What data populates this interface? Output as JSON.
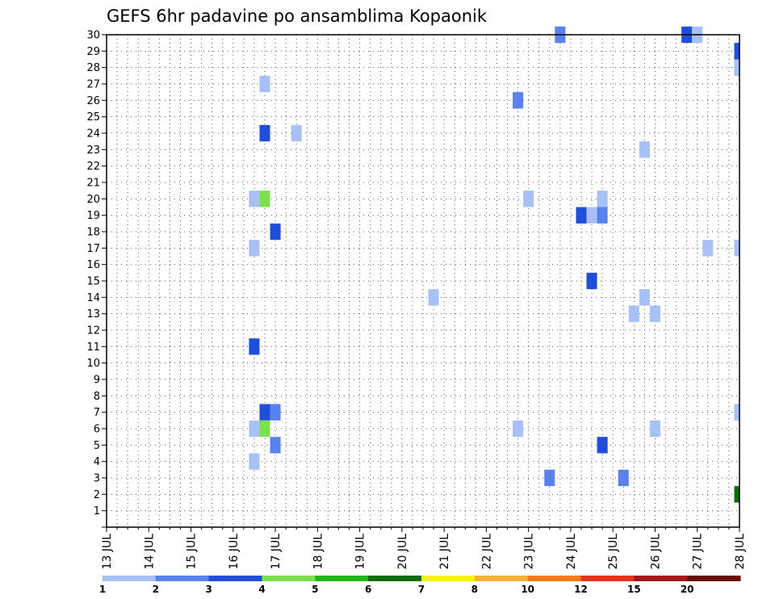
{
  "chart_data": {
    "type": "heatmap",
    "title": "GEFS 6hr padavine po ansamblima Kopaonik",
    "xlabel": "",
    "ylabel": "",
    "x_ticks": [
      "13 JUL",
      "14 JUL",
      "15 JUL",
      "16 JUL",
      "17 JUL",
      "18 JUL",
      "19 JUL",
      "20 JUL",
      "21 JUL",
      "22 JUL",
      "23 JUL",
      "24 JUL",
      "25 JUL",
      "26 JUL",
      "27 JUL",
      "28 JUL"
    ],
    "y_ticks": [
      "1",
      "2",
      "3",
      "4",
      "5",
      "6",
      "7",
      "8",
      "9",
      "10",
      "11",
      "12",
      "13",
      "14",
      "15",
      "16",
      "17",
      "18",
      "19",
      "20",
      "21",
      "22",
      "23",
      "24",
      "25",
      "26",
      "27",
      "28",
      "29",
      "30"
    ],
    "xlim_days": [
      13,
      28
    ],
    "ylim": [
      0,
      30
    ],
    "grid": true,
    "colorbar": {
      "levels": [
        "1",
        "2",
        "3",
        "4",
        "5",
        "6",
        "7",
        "8",
        "10",
        "12",
        "15",
        "20"
      ],
      "colors": [
        "#a8c0f5",
        "#5a82ee",
        "#1f4fd8",
        "#7ae04f",
        "#20b61a",
        "#0d6d0d",
        "#f5f01e",
        "#f7b03c",
        "#f77a19",
        "#e2331b",
        "#a91515",
        "#670b0b"
      ]
    },
    "points": [
      {
        "day": 23.75,
        "member": 30,
        "bin": 1
      },
      {
        "day": 26.75,
        "member": 30,
        "bin": 2
      },
      {
        "day": 27.0,
        "member": 30,
        "bin": 0
      },
      {
        "day": 28.0,
        "member": 29,
        "bin": 2
      },
      {
        "day": 28.0,
        "member": 28,
        "bin": 0
      },
      {
        "day": 16.75,
        "member": 27,
        "bin": 0
      },
      {
        "day": 22.75,
        "member": 26,
        "bin": 1
      },
      {
        "day": 16.75,
        "member": 24,
        "bin": 2
      },
      {
        "day": 17.5,
        "member": 24,
        "bin": 0
      },
      {
        "day": 25.75,
        "member": 23,
        "bin": 0
      },
      {
        "day": 16.5,
        "member": 20,
        "bin": 0
      },
      {
        "day": 16.75,
        "member": 20,
        "bin": 3
      },
      {
        "day": 23.0,
        "member": 20,
        "bin": 0
      },
      {
        "day": 24.75,
        "member": 20,
        "bin": 0
      },
      {
        "day": 24.25,
        "member": 19,
        "bin": 2
      },
      {
        "day": 24.5,
        "member": 19,
        "bin": 0
      },
      {
        "day": 24.75,
        "member": 19,
        "bin": 1
      },
      {
        "day": 17.0,
        "member": 18,
        "bin": 2
      },
      {
        "day": 16.5,
        "member": 17,
        "bin": 0
      },
      {
        "day": 27.25,
        "member": 17,
        "bin": 0
      },
      {
        "day": 28.0,
        "member": 17,
        "bin": 0
      },
      {
        "day": 24.5,
        "member": 15,
        "bin": 2
      },
      {
        "day": 20.75,
        "member": 14,
        "bin": 0
      },
      {
        "day": 25.75,
        "member": 14,
        "bin": 0
      },
      {
        "day": 25.5,
        "member": 13,
        "bin": 0
      },
      {
        "day": 26.0,
        "member": 13,
        "bin": 0
      },
      {
        "day": 16.5,
        "member": 11,
        "bin": 2
      },
      {
        "day": 16.75,
        "member": 7,
        "bin": 2
      },
      {
        "day": 17.0,
        "member": 7,
        "bin": 1
      },
      {
        "day": 28.0,
        "member": 7,
        "bin": 0
      },
      {
        "day": 16.5,
        "member": 6,
        "bin": 0
      },
      {
        "day": 16.75,
        "member": 6,
        "bin": 3
      },
      {
        "day": 22.75,
        "member": 6,
        "bin": 0
      },
      {
        "day": 26.0,
        "member": 6,
        "bin": 0
      },
      {
        "day": 17.0,
        "member": 5,
        "bin": 1
      },
      {
        "day": 24.75,
        "member": 5,
        "bin": 2
      },
      {
        "day": 16.5,
        "member": 4,
        "bin": 0
      },
      {
        "day": 23.5,
        "member": 3,
        "bin": 1
      },
      {
        "day": 25.25,
        "member": 3,
        "bin": 1
      },
      {
        "day": 28.0,
        "member": 2,
        "bin": 5
      }
    ]
  }
}
